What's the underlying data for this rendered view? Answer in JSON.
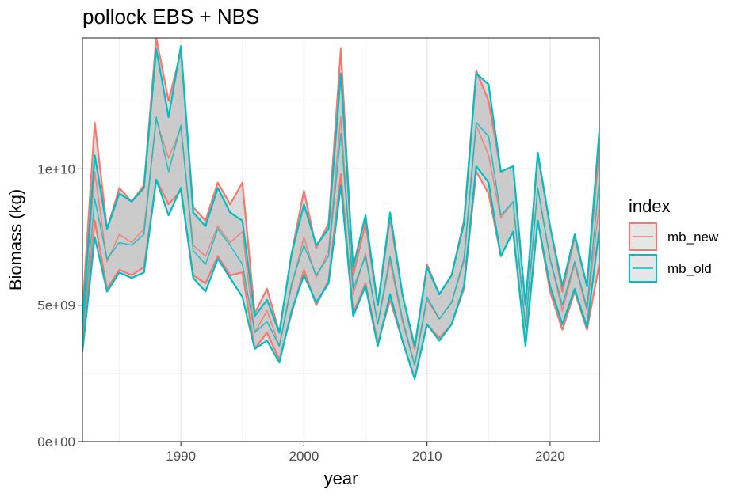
{
  "chart_data": {
    "type": "line",
    "title": "pollock EBS + NBS",
    "xlabel": "year",
    "ylabel": "Biomass (kg)",
    "xlim": [
      1982,
      2024
    ],
    "ylim": [
      0,
      14800000000
    ],
    "x_ticks": [
      1990,
      2000,
      2010,
      2020
    ],
    "x_tick_labels": [
      "1990",
      "2000",
      "2010",
      "2020"
    ],
    "y_ticks": [
      0,
      5000000000,
      10000000000
    ],
    "y_tick_labels": [
      "0e+00",
      "5e+09",
      "1e+10"
    ],
    "grid": true,
    "legend": {
      "title": "index",
      "placement": "right",
      "entries": [
        "mb_new",
        "mb_old"
      ]
    },
    "colors": {
      "mb_new": "#F8766D",
      "mb_old": "#00BFC4",
      "ribbon_fill": "#bdbdbd"
    },
    "x": [
      1982,
      1983,
      1984,
      1985,
      1986,
      1987,
      1988,
      1989,
      1990,
      1991,
      1992,
      1993,
      1994,
      1995,
      1996,
      1997,
      1998,
      1999,
      2000,
      2001,
      2002,
      2003,
      2004,
      2005,
      2006,
      2007,
      2008,
      2009,
      2010,
      2011,
      2012,
      2013,
      2014,
      2015,
      2016,
      2017,
      2018,
      2019,
      2020,
      2021,
      2022,
      2023,
      2024
    ],
    "series": [
      {
        "name": "mb_new",
        "mid": [
          4200000000,
          9900000000,
          6600000000,
          7600000000,
          7300000000,
          7800000000,
          11800000000,
          10400000000,
          11500000000,
          7200000000,
          6800000000,
          7900000000,
          7300000000,
          7700000000,
          4000000000,
          4800000000,
          3500000000,
          5700000000,
          7500000000,
          6000000000,
          7000000000,
          11900000000,
          5400000000,
          6900000000,
          4300000000,
          6600000000,
          4400000000,
          2800000000,
          5200000000,
          4500000000,
          5100000000,
          6600000000,
          11600000000,
          10500000000,
          8200000000,
          8800000000,
          4200000000,
          9300000000,
          6700000000,
          4800000000,
          6500000000,
          4800000000,
          8700000000
        ],
        "upper": [
          4800000000,
          11700000000,
          7800000000,
          9300000000,
          8800000000,
          9400000000,
          14800000000,
          12500000000,
          14300000000,
          8600000000,
          8100000000,
          9500000000,
          8700000000,
          9500000000,
          4700000000,
          5600000000,
          4000000000,
          6900000000,
          9200000000,
          7100000000,
          8000000000,
          14400000000,
          6100000000,
          8000000000,
          5000000000,
          8200000000,
          5400000000,
          3400000000,
          6500000000,
          5400000000,
          6100000000,
          8100000000,
          13600000000,
          12500000000,
          9900000000,
          10100000000,
          5000000000,
          10500000000,
          7900000000,
          5500000000,
          7500000000,
          5700000000,
          10800000000
        ],
        "lower": [
          3600000000,
          8100000000,
          5600000000,
          6300000000,
          6100000000,
          6400000000,
          9600000000,
          8700000000,
          9200000000,
          6100000000,
          5800000000,
          6800000000,
          6100000000,
          6200000000,
          3400000000,
          4000000000,
          3000000000,
          4700000000,
          6300000000,
          5000000000,
          5900000000,
          9800000000,
          4700000000,
          5800000000,
          3600000000,
          5200000000,
          3700000000,
          2300000000,
          4300000000,
          3800000000,
          4300000000,
          5600000000,
          9900000000,
          9100000000,
          6800000000,
          7700000000,
          3600000000,
          8100000000,
          5500000000,
          4100000000,
          5500000000,
          4100000000,
          6500000000
        ]
      },
      {
        "name": "mb_old",
        "mid": [
          4000000000,
          8900000000,
          6700000000,
          7300000000,
          7200000000,
          7600000000,
          11900000000,
          9900000000,
          11600000000,
          7000000000,
          6500000000,
          7800000000,
          7200000000,
          6500000000,
          4000000000,
          4400000000,
          3500000000,
          5800000000,
          7200000000,
          6100000000,
          6800000000,
          11300000000,
          5600000000,
          6800000000,
          4300000000,
          6800000000,
          4500000000,
          2800000000,
          5300000000,
          4500000000,
          5100000000,
          6700000000,
          11700000000,
          11200000000,
          8300000000,
          8800000000,
          4200000000,
          9300000000,
          6700000000,
          5000000000,
          6600000000,
          4900000000,
          9600000000
        ],
        "upper": [
          4400000000,
          10500000000,
          7800000000,
          9100000000,
          8800000000,
          9300000000,
          14400000000,
          11900000000,
          14500000000,
          8400000000,
          7900000000,
          9300000000,
          8400000000,
          8100000000,
          4600000000,
          5200000000,
          4000000000,
          6900000000,
          8700000000,
          7200000000,
          7800000000,
          13500000000,
          6400000000,
          8300000000,
          5000000000,
          8400000000,
          5400000000,
          3500000000,
          6400000000,
          5400000000,
          6100000000,
          8000000000,
          13500000000,
          13100000000,
          9900000000,
          10100000000,
          5000000000,
          10600000000,
          7900000000,
          5700000000,
          7600000000,
          5700000000,
          11400000000
        ],
        "lower": [
          3300000000,
          7500000000,
          5500000000,
          6200000000,
          6000000000,
          6200000000,
          9600000000,
          8300000000,
          9300000000,
          6000000000,
          5500000000,
          6700000000,
          6000000000,
          5300000000,
          3400000000,
          3700000000,
          2900000000,
          4800000000,
          6100000000,
          5100000000,
          5800000000,
          9400000000,
          4600000000,
          5700000000,
          3500000000,
          5400000000,
          3700000000,
          2300000000,
          4300000000,
          3700000000,
          4300000000,
          5700000000,
          10100000000,
          9500000000,
          6800000000,
          7700000000,
          3500000000,
          8100000000,
          5700000000,
          4300000000,
          5600000000,
          4200000000,
          7800000000
        ]
      }
    ]
  }
}
